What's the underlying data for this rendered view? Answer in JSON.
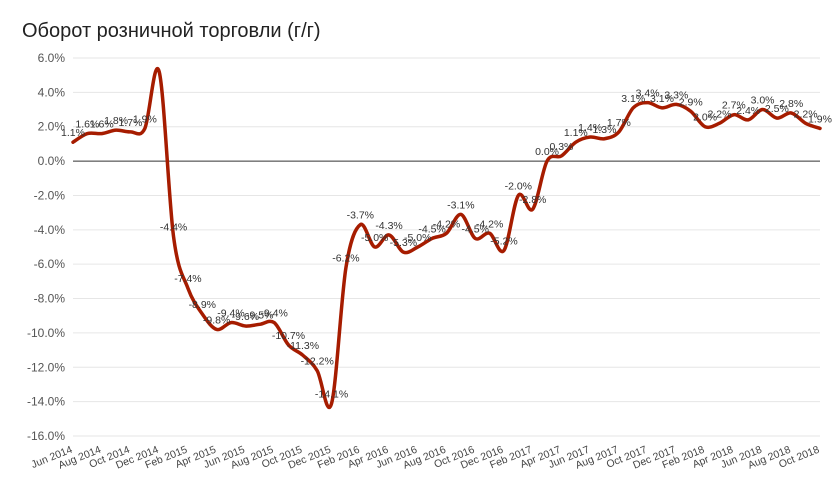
{
  "chart_data": {
    "type": "line",
    "title": "Оборот розничной торговли (г/г)",
    "xlabel": "",
    "ylabel": "",
    "ylim": [
      -16,
      6
    ],
    "y_ticks": [
      "6.0%",
      "4.0%",
      "2.0%",
      "0.0%",
      "-2.0%",
      "-4.0%",
      "-6.0%",
      "-8.0%",
      "-10.0%",
      "-12.0%",
      "-14.0%",
      "-16.0%"
    ],
    "x_tick_labels": [
      "Jun 2014",
      "Aug 2014",
      "Oct 2014",
      "Dec 2014",
      "Feb 2015",
      "Apr 2015",
      "Jun 2015",
      "Aug 2015",
      "Oct 2015",
      "Dec 2015",
      "Feb 2016",
      "Apr 2016",
      "Jun 2016",
      "Aug 2016",
      "Oct 2016",
      "Dec 2016",
      "Feb 2017",
      "Apr 2017",
      "Jun 2017",
      "Aug 2017",
      "Oct 2017",
      "Dec 2017",
      "Feb 2018",
      "Apr 2018",
      "Jun 2018",
      "Aug 2018",
      "Oct 2018"
    ],
    "grid": true,
    "legend": "none",
    "line_color": "#a61c00",
    "series": [
      {
        "values": [
          1.1,
          1.6,
          1.6,
          1.8,
          1.7,
          1.9,
          5.2,
          -4.4,
          -7.4,
          -8.9,
          -9.8,
          -9.4,
          -9.6,
          -9.5,
          -9.4,
          -10.7,
          -11.3,
          -12.2,
          -14.1,
          -6.2,
          -3.7,
          -5.0,
          -4.3,
          -5.3,
          -5.0,
          -4.5,
          -4.2,
          -3.1,
          -4.5,
          -4.2,
          -5.2,
          -2.0,
          -2.8,
          0.0,
          0.3,
          1.1,
          1.4,
          1.3,
          1.7,
          3.1,
          3.4,
          3.1,
          3.3,
          2.9,
          2.0,
          2.2,
          2.7,
          2.4,
          3.0,
          2.5,
          2.8,
          2.2,
          1.9
        ],
        "labels": [
          "1.1%",
          "1.6%",
          "1.6%",
          "1.8%",
          "1.7%",
          "1.9%",
          "",
          "-4.4%",
          "-7.4%",
          "-8.9%",
          "-9.8%",
          "-9.4%",
          "-9.6%",
          "-9.5%",
          "-9.4%",
          "-10.7%",
          "-11.3%",
          "-12.2%",
          "-14.1%",
          "-6.2%",
          "-3.7%",
          "-5.0%",
          "-4.3%",
          "-5.3%",
          "-5.0%",
          "-4.5%",
          "-4.2%",
          "-3.1%",
          "-4.5%",
          "-4.2%",
          "-5.2%",
          "-2.0%",
          "-2.8%",
          "0.0%",
          "0.3%",
          "1.1%",
          "1.4%",
          "1.3%",
          "1.7%",
          "3.1%",
          "3.4%",
          "3.1%",
          "3.3%",
          "2.9%",
          "2.0%",
          "2.2%",
          "2.7%",
          "2.4%",
          "3.0%",
          "2.5%",
          "2.8%",
          "2.2%",
          "1.9%"
        ]
      }
    ]
  }
}
